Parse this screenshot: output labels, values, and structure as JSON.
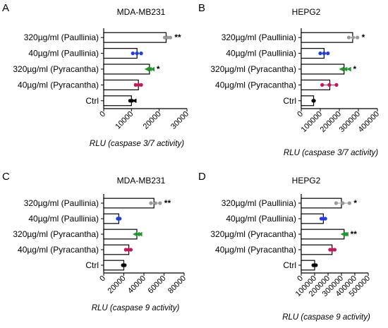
{
  "chart_data": [
    {
      "type": "bar",
      "panel_letter": "A",
      "title": "MDA-MB231",
      "xlabel": "RLU (caspase 3/7 activity)",
      "categories": [
        "320µg/ml (Paullinia)",
        "40µg/ml (Paullinia)",
        "320µg/ml (Pyracantha)",
        "40µg/ml (Pyracantha)",
        "Ctrl"
      ],
      "values": [
        22500,
        12000,
        16500,
        12500,
        10000
      ],
      "points": [
        [
          22000,
          24000
        ],
        [
          10500,
          13500
        ],
        [
          15500,
          17500
        ],
        [
          11500,
          13500
        ],
        [
          9500,
          11000
        ]
      ],
      "point_colors": [
        "#999999",
        "#1f3de0",
        "#1f9a2a",
        "#c2185b",
        "#000000"
      ],
      "significance": [
        "**",
        "",
        "*",
        "",
        ""
      ],
      "xlim": [
        0,
        30000
      ],
      "xticks": [
        "0",
        "10000",
        "20000",
        "30000"
      ],
      "tick_values": [
        0,
        10000,
        20000,
        30000
      ]
    },
    {
      "type": "bar",
      "panel_letter": "B",
      "title": "HEPG2",
      "xlabel": "RLU (caspase 3/7 activity)",
      "categories": [
        "320µg/ml (Paullinia)",
        "40µg/ml (Paullinia)",
        "320µg/ml (Pyracantha)",
        "40µg/ml (Pyracantha)",
        "Ctrl"
      ],
      "values": [
        270000,
        120000,
        225000,
        150000,
        65000
      ],
      "points": [
        [
          250000,
          295000
        ],
        [
          100000,
          140000
        ],
        [
          210000,
          250000
        ],
        [
          110000,
          185000
        ],
        [
          63000,
          67000
        ]
      ],
      "point_colors": [
        "#999999",
        "#1f3de0",
        "#1f9a2a",
        "#c2185b",
        "#000000"
      ],
      "significance": [
        "*",
        "",
        "*",
        "",
        ""
      ],
      "xlim": [
        0,
        400000
      ],
      "xticks": [
        "0",
        "100000",
        "200000",
        "300000",
        "400000"
      ],
      "tick_values": [
        0,
        100000,
        200000,
        300000,
        400000
      ]
    },
    {
      "type": "bar",
      "panel_letter": "C",
      "title": "MDA-MB231",
      "xlabel": "RLU (caspase 9 activity)",
      "categories": [
        "320µg/ml (Paullinia)",
        "40µg/ml (Paullinia)",
        "320µg/ml (Pyracantha)",
        "40µg/ml (Pyracantha)",
        "Ctrl"
      ],
      "values": [
        50000,
        15000,
        33000,
        25000,
        20000
      ],
      "points": [
        [
          47000,
          56000
        ],
        [
          14000,
          16000
        ],
        [
          31000,
          36000
        ],
        [
          22000,
          27000
        ],
        [
          19000,
          21000
        ]
      ],
      "point_colors": [
        "#999999",
        "#1f3de0",
        "#1f9a2a",
        "#c2185b",
        "#000000"
      ],
      "significance": [
        "**",
        "",
        "",
        "",
        ""
      ],
      "xlim": [
        0,
        80000
      ],
      "xticks": [
        "0",
        "20000",
        "40000",
        "60000",
        "80000"
      ],
      "tick_values": [
        0,
        20000,
        40000,
        60000,
        80000
      ]
    },
    {
      "type": "bar",
      "panel_letter": "D",
      "title": "HEPG2",
      "xlabel": "RLU (caspase 9 activity)",
      "categories": [
        "320µg/ml (Paullinia)",
        "40µg/ml (Paullinia)",
        "320µg/ml (Pyracantha)",
        "40µg/ml (Pyracantha)",
        "Ctrl"
      ],
      "values": [
        300000,
        165000,
        320000,
        230000,
        100000
      ],
      "points": [
        [
          260000,
          360000
        ],
        [
          150000,
          180000
        ],
        [
          310000,
          335000
        ],
        [
          215000,
          250000
        ],
        [
          90000,
          110000
        ]
      ],
      "point_colors": [
        "#999999",
        "#1f3de0",
        "#1f9a2a",
        "#c2185b",
        "#000000"
      ],
      "significance": [
        "*",
        "",
        "**",
        "",
        ""
      ],
      "xlim": [
        0,
        500000
      ],
      "xticks": [
        "0",
        "100000",
        "200000",
        "300000",
        "400000",
        "500000"
      ],
      "tick_values": [
        0,
        100000,
        200000,
        300000,
        400000,
        500000
      ]
    }
  ]
}
